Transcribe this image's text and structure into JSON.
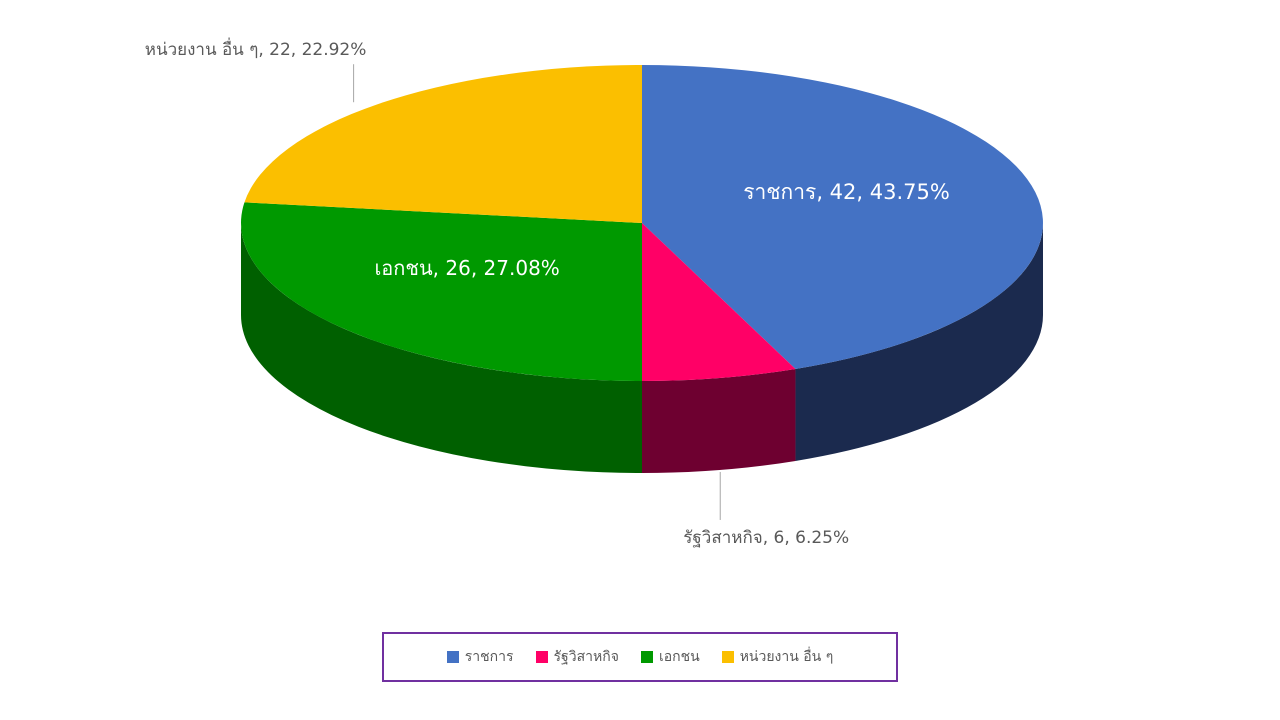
{
  "chart_data": {
    "type": "pie",
    "style": "3d-pie",
    "categories": [
      "ราชการ",
      "รัฐวิสาหกิจ",
      "เอกชน",
      "หน่วยงาน อื่น ๆ"
    ],
    "values": [
      42,
      6,
      26,
      22
    ],
    "percentages": [
      "43.75%",
      "6.25%",
      "27.08%",
      "22.92%"
    ],
    "data_labels": [
      "ราชการ, 42, 43.75%",
      "รัฐวิสาหกิจ, 6, 6.25%",
      "เอกชน, 26, 27.08%",
      "หน่วยงาน อื่น ๆ, 22, 22.92%"
    ],
    "colors": [
      "#4472c4",
      "#ff0066",
      "#009900",
      "#fbbf00"
    ],
    "side_colors": [
      "#1b2a4e",
      "#6e0030",
      "#006000",
      "#c99800"
    ],
    "legend_position": "bottom",
    "legend_border_color": "#7030a0"
  }
}
